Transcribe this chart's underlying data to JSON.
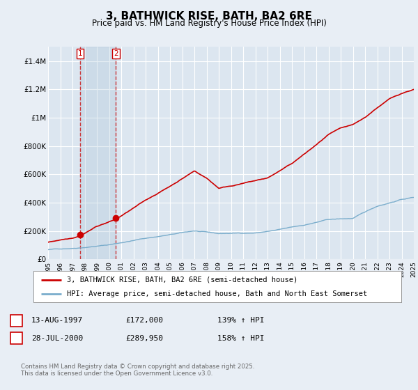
{
  "title": "3, BATHWICK RISE, BATH, BA2 6RE",
  "subtitle": "Price paid vs. HM Land Registry's House Price Index (HPI)",
  "footer": "Contains HM Land Registry data © Crown copyright and database right 2025.\nThis data is licensed under the Open Government Licence v3.0.",
  "legend_line1": "3, BATHWICK RISE, BATH, BA2 6RE (semi-detached house)",
  "legend_line2": "HPI: Average price, semi-detached house, Bath and North East Somerset",
  "transaction1_date": "13-AUG-1997",
  "transaction1_price": "£172,000",
  "transaction1_hpi": "139% ↑ HPI",
  "transaction2_date": "28-JUL-2000",
  "transaction2_price": "£289,950",
  "transaction2_hpi": "158% ↑ HPI",
  "red_color": "#cc0000",
  "blue_color": "#7aadcc",
  "bg_color": "#e8eef5",
  "plot_bg": "#dce6f0",
  "grid_color": "#ffffff",
  "ylim": [
    0,
    1500000
  ],
  "yticks": [
    0,
    200000,
    400000,
    600000,
    800000,
    1000000,
    1200000,
    1400000
  ],
  "ytick_labels": [
    "£0",
    "£200K",
    "£400K",
    "£600K",
    "£800K",
    "£1M",
    "£1.2M",
    "£1.4M"
  ],
  "transaction1_x": 1997.62,
  "transaction1_y": 172000,
  "transaction2_x": 2000.57,
  "transaction2_y": 289950,
  "xmin": 1995,
  "xmax": 2025
}
